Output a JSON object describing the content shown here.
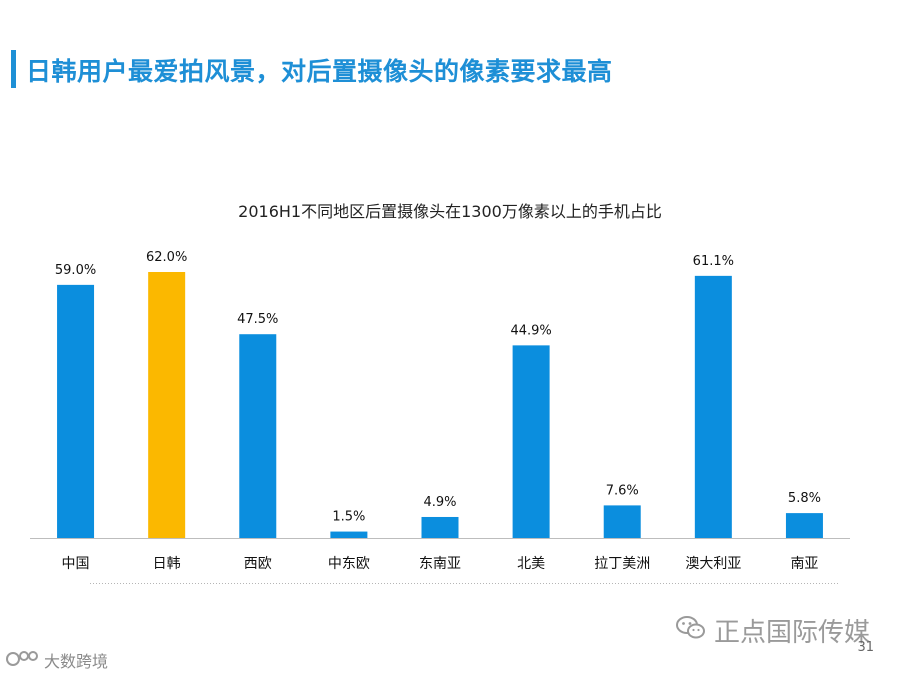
{
  "header": {
    "title": "日韩用户最爱拍风景，对后置摄像头的像素要求最高"
  },
  "chart_data": {
    "type": "bar",
    "title": "2016H1不同地区后置摄像头在1300万像素以上的手机占比",
    "categories": [
      "中国",
      "日韩",
      "西欧",
      "中东欧",
      "东南亚",
      "北美",
      "拉丁美洲",
      "澳大利亚",
      "南亚"
    ],
    "values": [
      59.0,
      62.0,
      47.5,
      1.5,
      4.9,
      44.9,
      7.6,
      61.1,
      5.8
    ],
    "value_labels": [
      "59.0%",
      "62.0%",
      "47.5%",
      "1.5%",
      "4.9%",
      "44.9%",
      "7.6%",
      "61.1%",
      "5.8%"
    ],
    "highlight_index": 1,
    "colors": {
      "default": "#0b8ede",
      "highlight": "#fbb800"
    },
    "xlabel": "",
    "ylabel": "",
    "ylim": [
      0,
      62
    ]
  },
  "watermarks": {
    "brand_right": "正点国际传媒",
    "brand_right_icon": "wechat-icon",
    "brand_left": "大数跨境",
    "brand_left_icon": "logo-icon"
  },
  "footer": {
    "page_number": "31"
  }
}
